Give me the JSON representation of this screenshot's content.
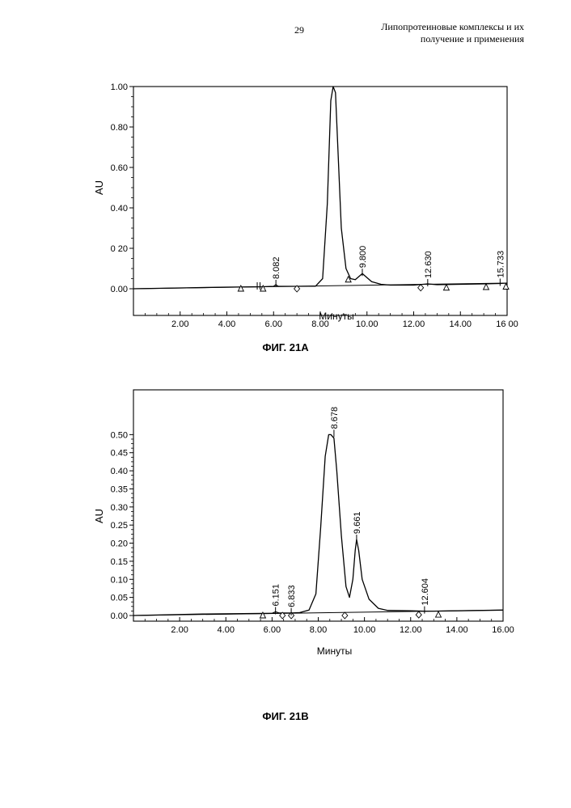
{
  "header": {
    "page_number": "29",
    "title_line1": "Липопротеиновые комплексы и их",
    "title_line2": "получение и применения"
  },
  "figures": [
    {
      "caption": "ФИГ. 21А"
    },
    {
      "caption": "ФИГ. 21В"
    }
  ],
  "chart_data": [
    {
      "type": "line",
      "title": "",
      "xlabel": "Минуты",
      "ylabel": "AU",
      "xlim": [
        0,
        16
      ],
      "ylim": [
        0,
        1.0
      ],
      "x_ticks": [
        "2.00",
        "4.00",
        "6.00",
        "8.00",
        "10.00",
        "12.00",
        "14.00",
        "16 00"
      ],
      "y_ticks": [
        "0.00",
        "0 20",
        "0.40",
        "0.60",
        "0.80",
        "1.00"
      ],
      "series": [
        {
          "x": [
            0,
            2,
            4,
            5.5,
            6.0,
            6.1,
            6.2,
            7.0,
            7.8,
            8.1,
            8.3,
            8.45,
            8.55,
            8.65,
            8.75,
            8.9,
            9.1,
            9.3,
            9.5,
            9.7,
            9.8,
            9.95,
            10.2,
            10.6,
            11.0,
            12.0,
            12.6,
            13.0,
            14.0,
            15.0,
            15.7,
            16.0
          ],
          "y": [
            0.0,
            0.004,
            0.008,
            0.01,
            0.012,
            0.02,
            0.012,
            0.012,
            0.013,
            0.05,
            0.42,
            0.93,
            1.0,
            0.97,
            0.7,
            0.3,
            0.1,
            0.05,
            0.045,
            0.065,
            0.075,
            0.06,
            0.035,
            0.022,
            0.018,
            0.018,
            0.024,
            0.02,
            0.022,
            0.024,
            0.026,
            0.028
          ]
        }
      ],
      "peak_labels": [
        {
          "x": 6.1,
          "y": 0.02,
          "label": "8.082"
        },
        {
          "x": 9.8,
          "y": 0.075,
          "label": "9.800"
        },
        {
          "x": 12.6,
          "y": 0.024,
          "label": "12.630"
        },
        {
          "x": 15.7,
          "y": 0.026,
          "label": "15.733"
        }
      ],
      "markers": [
        {
          "x": 4.6,
          "y": 0.0,
          "shape": "triangle"
        },
        {
          "x": 5.55,
          "y": 0.0,
          "shape": "triangle"
        },
        {
          "x": 7.0,
          "y": 0.0,
          "shape": "diamond"
        },
        {
          "x": 9.2,
          "y": 0.045,
          "shape": "triangle"
        },
        {
          "x": 12.3,
          "y": 0.005,
          "shape": "diamond"
        },
        {
          "x": 13.4,
          "y": 0.005,
          "shape": "triangle"
        },
        {
          "x": 15.1,
          "y": 0.008,
          "shape": "triangle"
        },
        {
          "x": 15.95,
          "y": 0.01,
          "shape": "triangle"
        }
      ],
      "ticks_on_baseline": [
        5.3,
        5.42
      ]
    },
    {
      "type": "line",
      "title": "",
      "xlabel": "Минуты",
      "ylabel": "AU",
      "xlim": [
        0,
        16
      ],
      "ylim": [
        0,
        0.55
      ],
      "x_ticks": [
        "2.00",
        "4.00",
        "6.00",
        "8.00",
        "10.00",
        "12.00",
        "14.00",
        "16.00"
      ],
      "y_ticks": [
        "0.00",
        "0.05",
        "0.10",
        "0.15",
        "0.20",
        "0.25",
        "0.30",
        "0.35",
        "0.40",
        "0.45",
        "0.50"
      ],
      "series": [
        {
          "x": [
            0,
            3,
            6.0,
            6.15,
            6.3,
            6.83,
            7.2,
            7.6,
            7.9,
            8.1,
            8.3,
            8.45,
            8.55,
            8.68,
            8.8,
            9.0,
            9.2,
            9.35,
            9.5,
            9.6,
            9.66,
            9.75,
            9.9,
            10.2,
            10.6,
            11.0,
            12.0,
            12.6,
            13.0,
            14.0,
            16.0
          ],
          "y": [
            0.0,
            0.004,
            0.006,
            0.01,
            0.007,
            0.007,
            0.008,
            0.015,
            0.06,
            0.24,
            0.44,
            0.5,
            0.5,
            0.49,
            0.4,
            0.22,
            0.08,
            0.05,
            0.1,
            0.18,
            0.21,
            0.18,
            0.1,
            0.045,
            0.02,
            0.014,
            0.013,
            0.012,
            0.012,
            0.013,
            0.015
          ]
        }
      ],
      "peak_labels": [
        {
          "x": 6.15,
          "y": 0.01,
          "label": "6.151"
        },
        {
          "x": 6.83,
          "y": 0.007,
          "label": "6.833"
        },
        {
          "x": 8.68,
          "y": 0.5,
          "label": "8.678"
        },
        {
          "x": 9.66,
          "y": 0.21,
          "label": "9.661"
        },
        {
          "x": 12.6,
          "y": 0.012,
          "label": "12.604"
        }
      ],
      "markers": [
        {
          "x": 5.6,
          "y": 0.0,
          "shape": "triangle"
        },
        {
          "x": 6.45,
          "y": 0.0,
          "shape": "diamond"
        },
        {
          "x": 6.83,
          "y": 0.0,
          "shape": "diamond"
        },
        {
          "x": 9.15,
          "y": 0.0,
          "shape": "diamond"
        },
        {
          "x": 12.35,
          "y": 0.002,
          "shape": "diamond"
        },
        {
          "x": 13.2,
          "y": 0.002,
          "shape": "triangle"
        }
      ],
      "ticks_on_baseline": []
    }
  ]
}
